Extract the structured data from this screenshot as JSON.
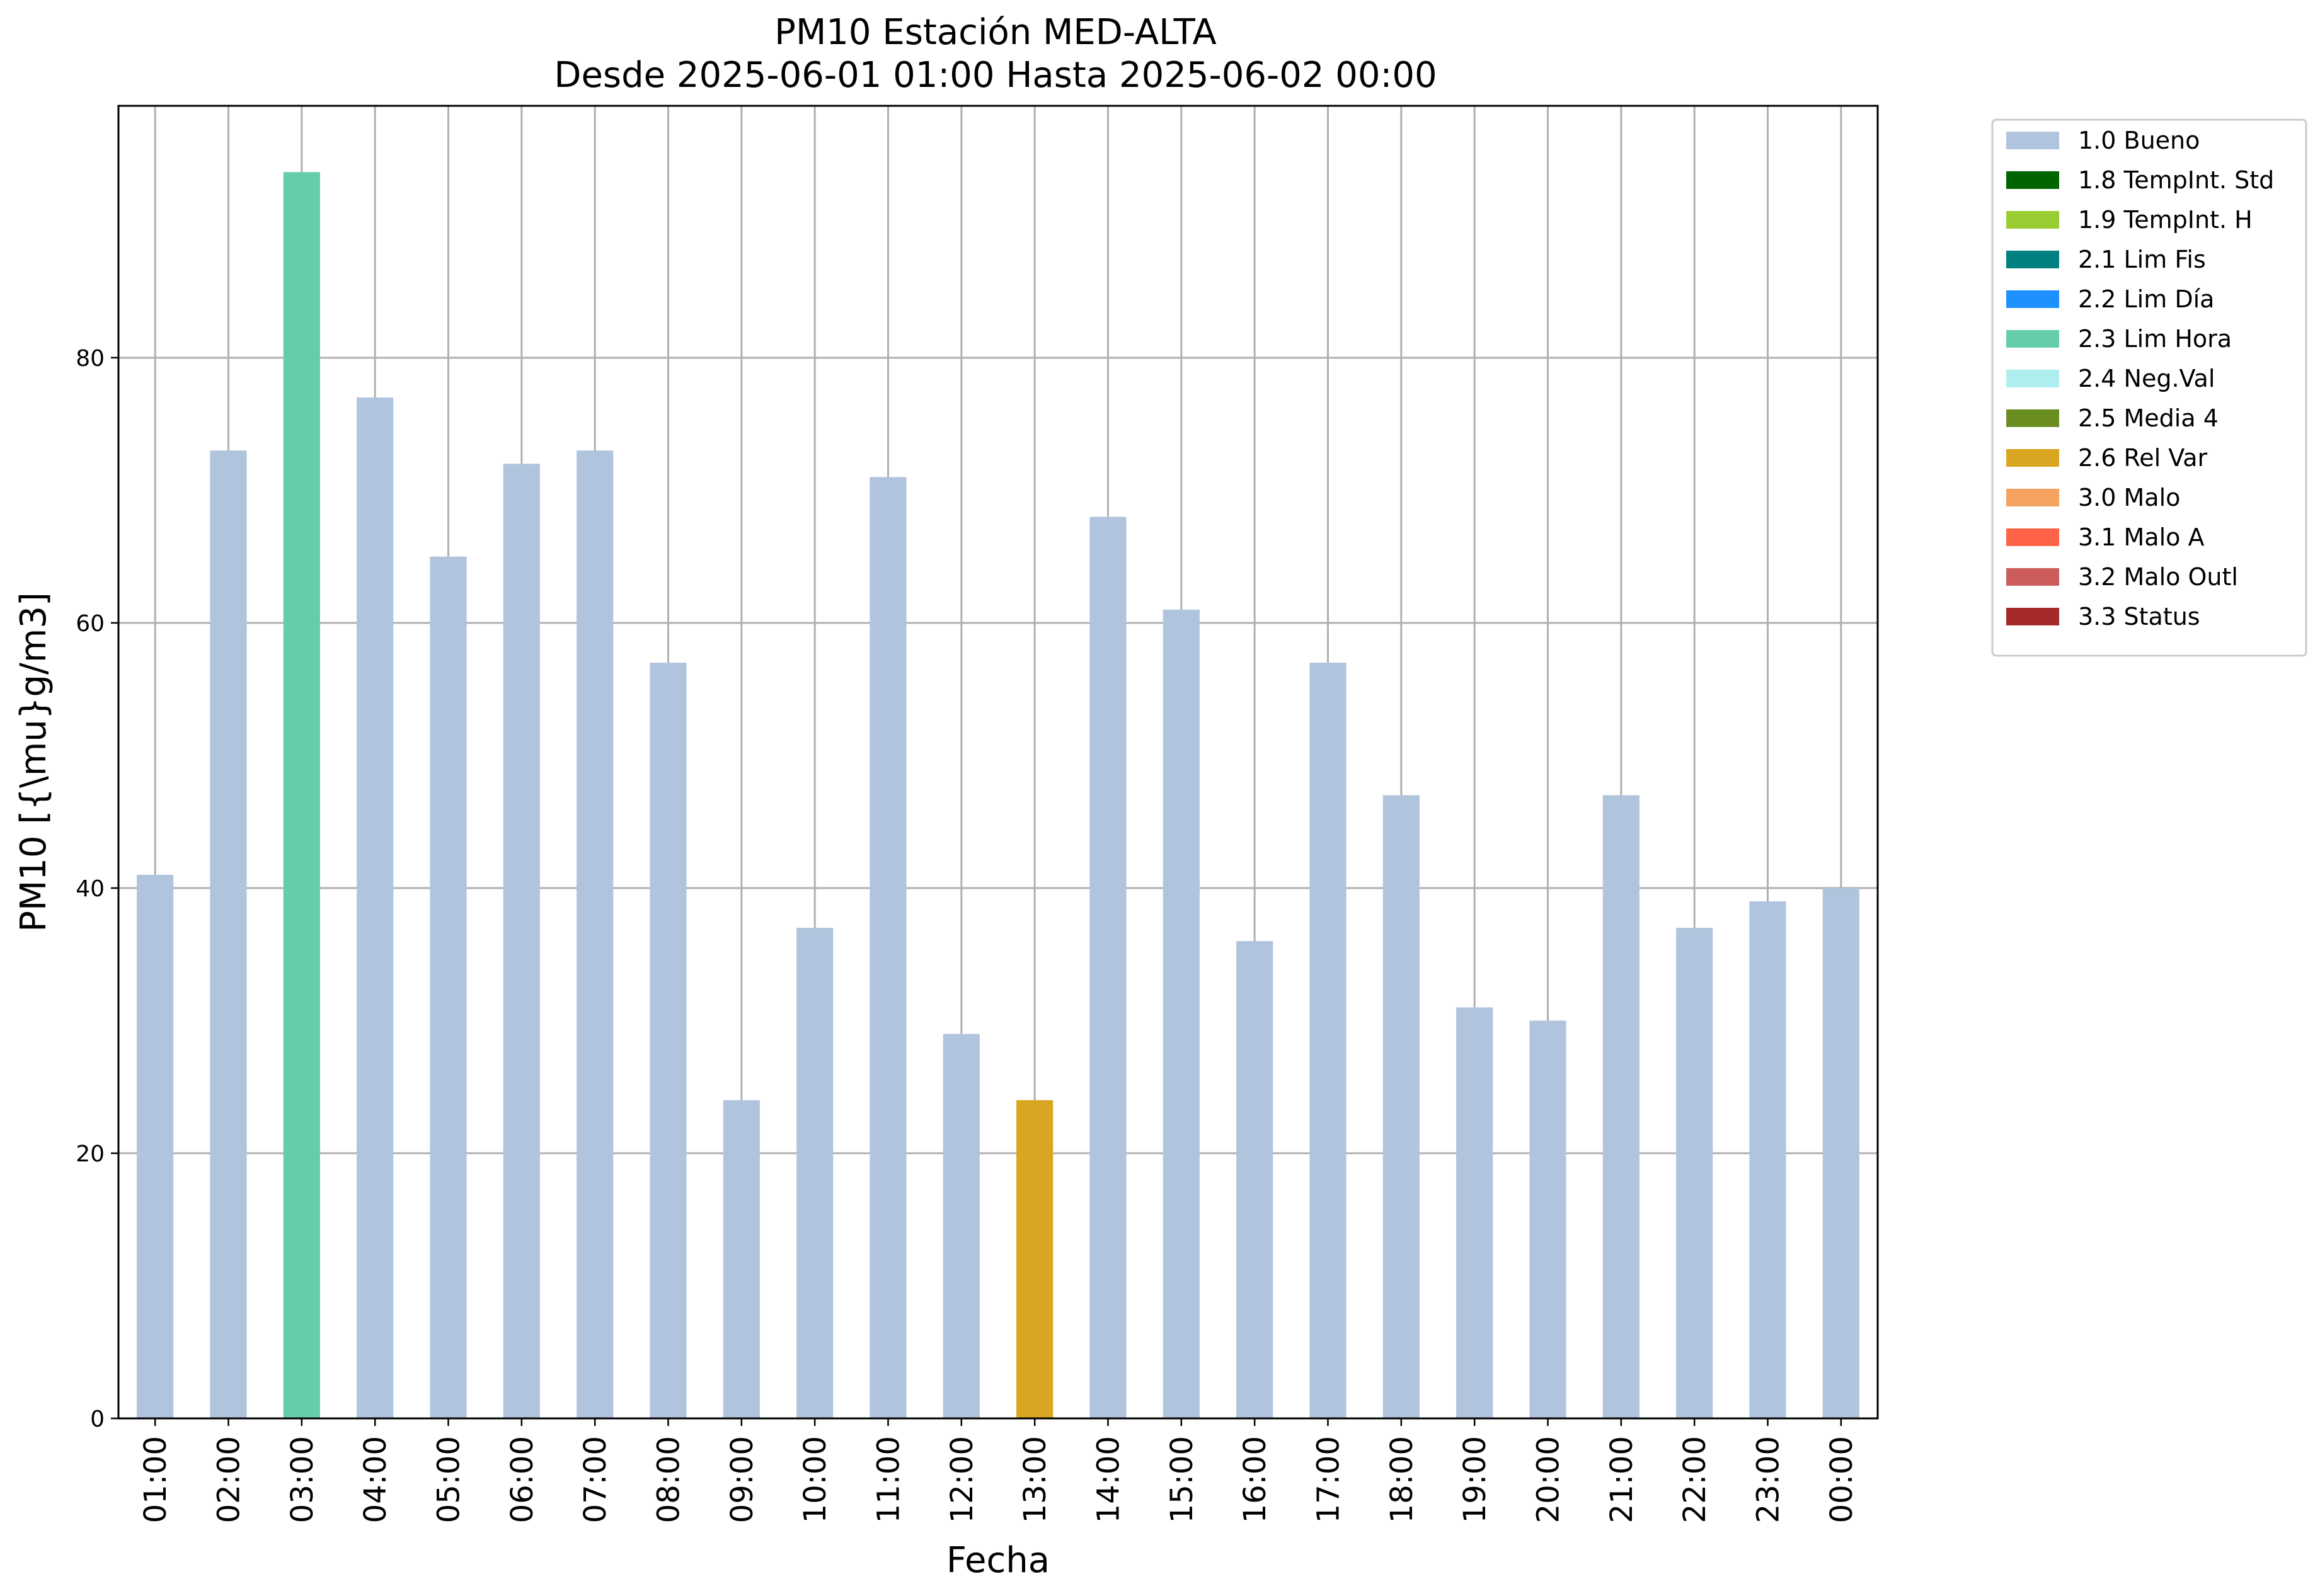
{
  "chart_data": {
    "type": "bar",
    "title": "PM10 Estación MED-ALTA",
    "subtitle": "Desde 2025-06-01 01:00 Hasta 2025-06-02 00:00",
    "xlabel": "Fecha",
    "ylabel": "PM10 [{\\mu}g/m3]",
    "ylim": [
      0,
      99
    ],
    "yticks": [
      0,
      20,
      40,
      60,
      80
    ],
    "grid": true,
    "legend_position": "outside-top-right",
    "categories": [
      "01:00",
      "02:00",
      "03:00",
      "04:00",
      "05:00",
      "06:00",
      "07:00",
      "08:00",
      "09:00",
      "10:00",
      "11:00",
      "12:00",
      "13:00",
      "14:00",
      "15:00",
      "16:00",
      "17:00",
      "18:00",
      "19:00",
      "20:00",
      "21:00",
      "22:00",
      "23:00",
      "00:00"
    ],
    "values": [
      41,
      73,
      94,
      77,
      65,
      72,
      73,
      57,
      24,
      37,
      71,
      29,
      24,
      68,
      61,
      36,
      57,
      47,
      31,
      30,
      47,
      37,
      39,
      40
    ],
    "flags": [
      "1.0 Bueno",
      "1.0 Bueno",
      "2.3 Lim Hora",
      "1.0 Bueno",
      "1.0 Bueno",
      "1.0 Bueno",
      "1.0 Bueno",
      "1.0 Bueno",
      "1.0 Bueno",
      "1.0 Bueno",
      "1.0 Bueno",
      "1.0 Bueno",
      "2.6 Rel Var",
      "1.0 Bueno",
      "1.0 Bueno",
      "1.0 Bueno",
      "1.0 Bueno",
      "1.0 Bueno",
      "1.0 Bueno",
      "1.0 Bueno",
      "1.0 Bueno",
      "1.0 Bueno",
      "1.0 Bueno",
      "1.0 Bueno"
    ],
    "legend": [
      {
        "label": "1.0 Bueno",
        "color": "#b0c4de"
      },
      {
        "label": "1.8 TempInt. Std",
        "color": "#006400"
      },
      {
        "label": "1.9 TempInt. H",
        "color": "#9acd32"
      },
      {
        "label": "2.1 Lim Fis",
        "color": "#008080"
      },
      {
        "label": "2.2 Lim Día",
        "color": "#1e90ff"
      },
      {
        "label": "2.3 Lim Hora",
        "color": "#66cdaa"
      },
      {
        "label": "2.4 Neg.Val",
        "color": "#afeeee"
      },
      {
        "label": "2.5 Media 4",
        "color": "#6b8e23"
      },
      {
        "label": "2.6 Rel Var",
        "color": "#daa520"
      },
      {
        "label": "3.0 Malo",
        "color": "#f4a460"
      },
      {
        "label": "3.1 Malo A",
        "color": "#ff6347"
      },
      {
        "label": "3.2 Malo Outl",
        "color": "#cd5c5c"
      },
      {
        "label": "3.3 Status",
        "color": "#a52a2a"
      }
    ]
  }
}
